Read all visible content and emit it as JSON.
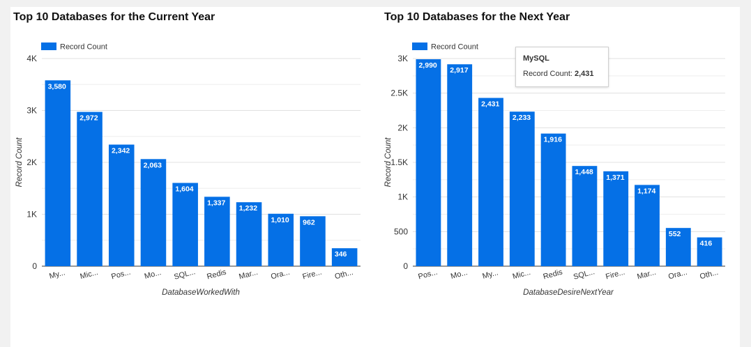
{
  "chart_data": [
    {
      "type": "bar",
      "title": "Top 10 Databases for the Current Year",
      "xlabel": "DatabaseWorkedWith",
      "ylabel": "Record Count",
      "legend": "top-left",
      "legend_label": "Record Count",
      "grid": true,
      "ylim": [
        0,
        4000
      ],
      "yticks": [
        0,
        1000,
        2000,
        3000,
        4000
      ],
      "ytick_labels": [
        "0",
        "1K",
        "2K",
        "3K",
        "4K"
      ],
      "categories": [
        "My...",
        "Mic...",
        "Pos...",
        "Mo...",
        "SQL...",
        "Redis",
        "Mar...",
        "Ora...",
        "Fire...",
        "Oth..."
      ],
      "values": [
        3580,
        2972,
        2342,
        2063,
        1604,
        1337,
        1232,
        1010,
        962,
        346
      ],
      "value_labels": [
        "3,580",
        "2,972",
        "2,342",
        "2,063",
        "1,604",
        "1,337",
        "1,232",
        "1,010",
        "962",
        "346"
      ],
      "color": "#0570e6"
    },
    {
      "type": "bar",
      "title": "Top 10 Databases for the Next Year",
      "xlabel": "DatabaseDesireNextYear",
      "ylabel": "Record Count",
      "legend": "top-left",
      "legend_label": "Record Count",
      "grid": true,
      "ylim": [
        0,
        3000
      ],
      "yticks": [
        0,
        500,
        1000,
        1500,
        2000,
        2500,
        3000
      ],
      "ytick_labels": [
        "0",
        "500",
        "1K",
        "1.5K",
        "2K",
        "2.5K",
        "3K"
      ],
      "categories": [
        "Pos...",
        "Mo...",
        "My...",
        "Mic...",
        "Redis",
        "SQL...",
        "Fire...",
        "Mar...",
        "Ora...",
        "Oth..."
      ],
      "values": [
        2990,
        2917,
        2431,
        2233,
        1916,
        1448,
        1371,
        1174,
        552,
        416
      ],
      "value_labels": [
        "2,990",
        "2,917",
        "2,431",
        "2,233",
        "1,916",
        "1,448",
        "1,371",
        "1,174",
        "552",
        "416"
      ],
      "color": "#0570e6"
    }
  ],
  "tooltip": {
    "title": "MySQL",
    "label": "Record Count:",
    "value": "2,431"
  }
}
